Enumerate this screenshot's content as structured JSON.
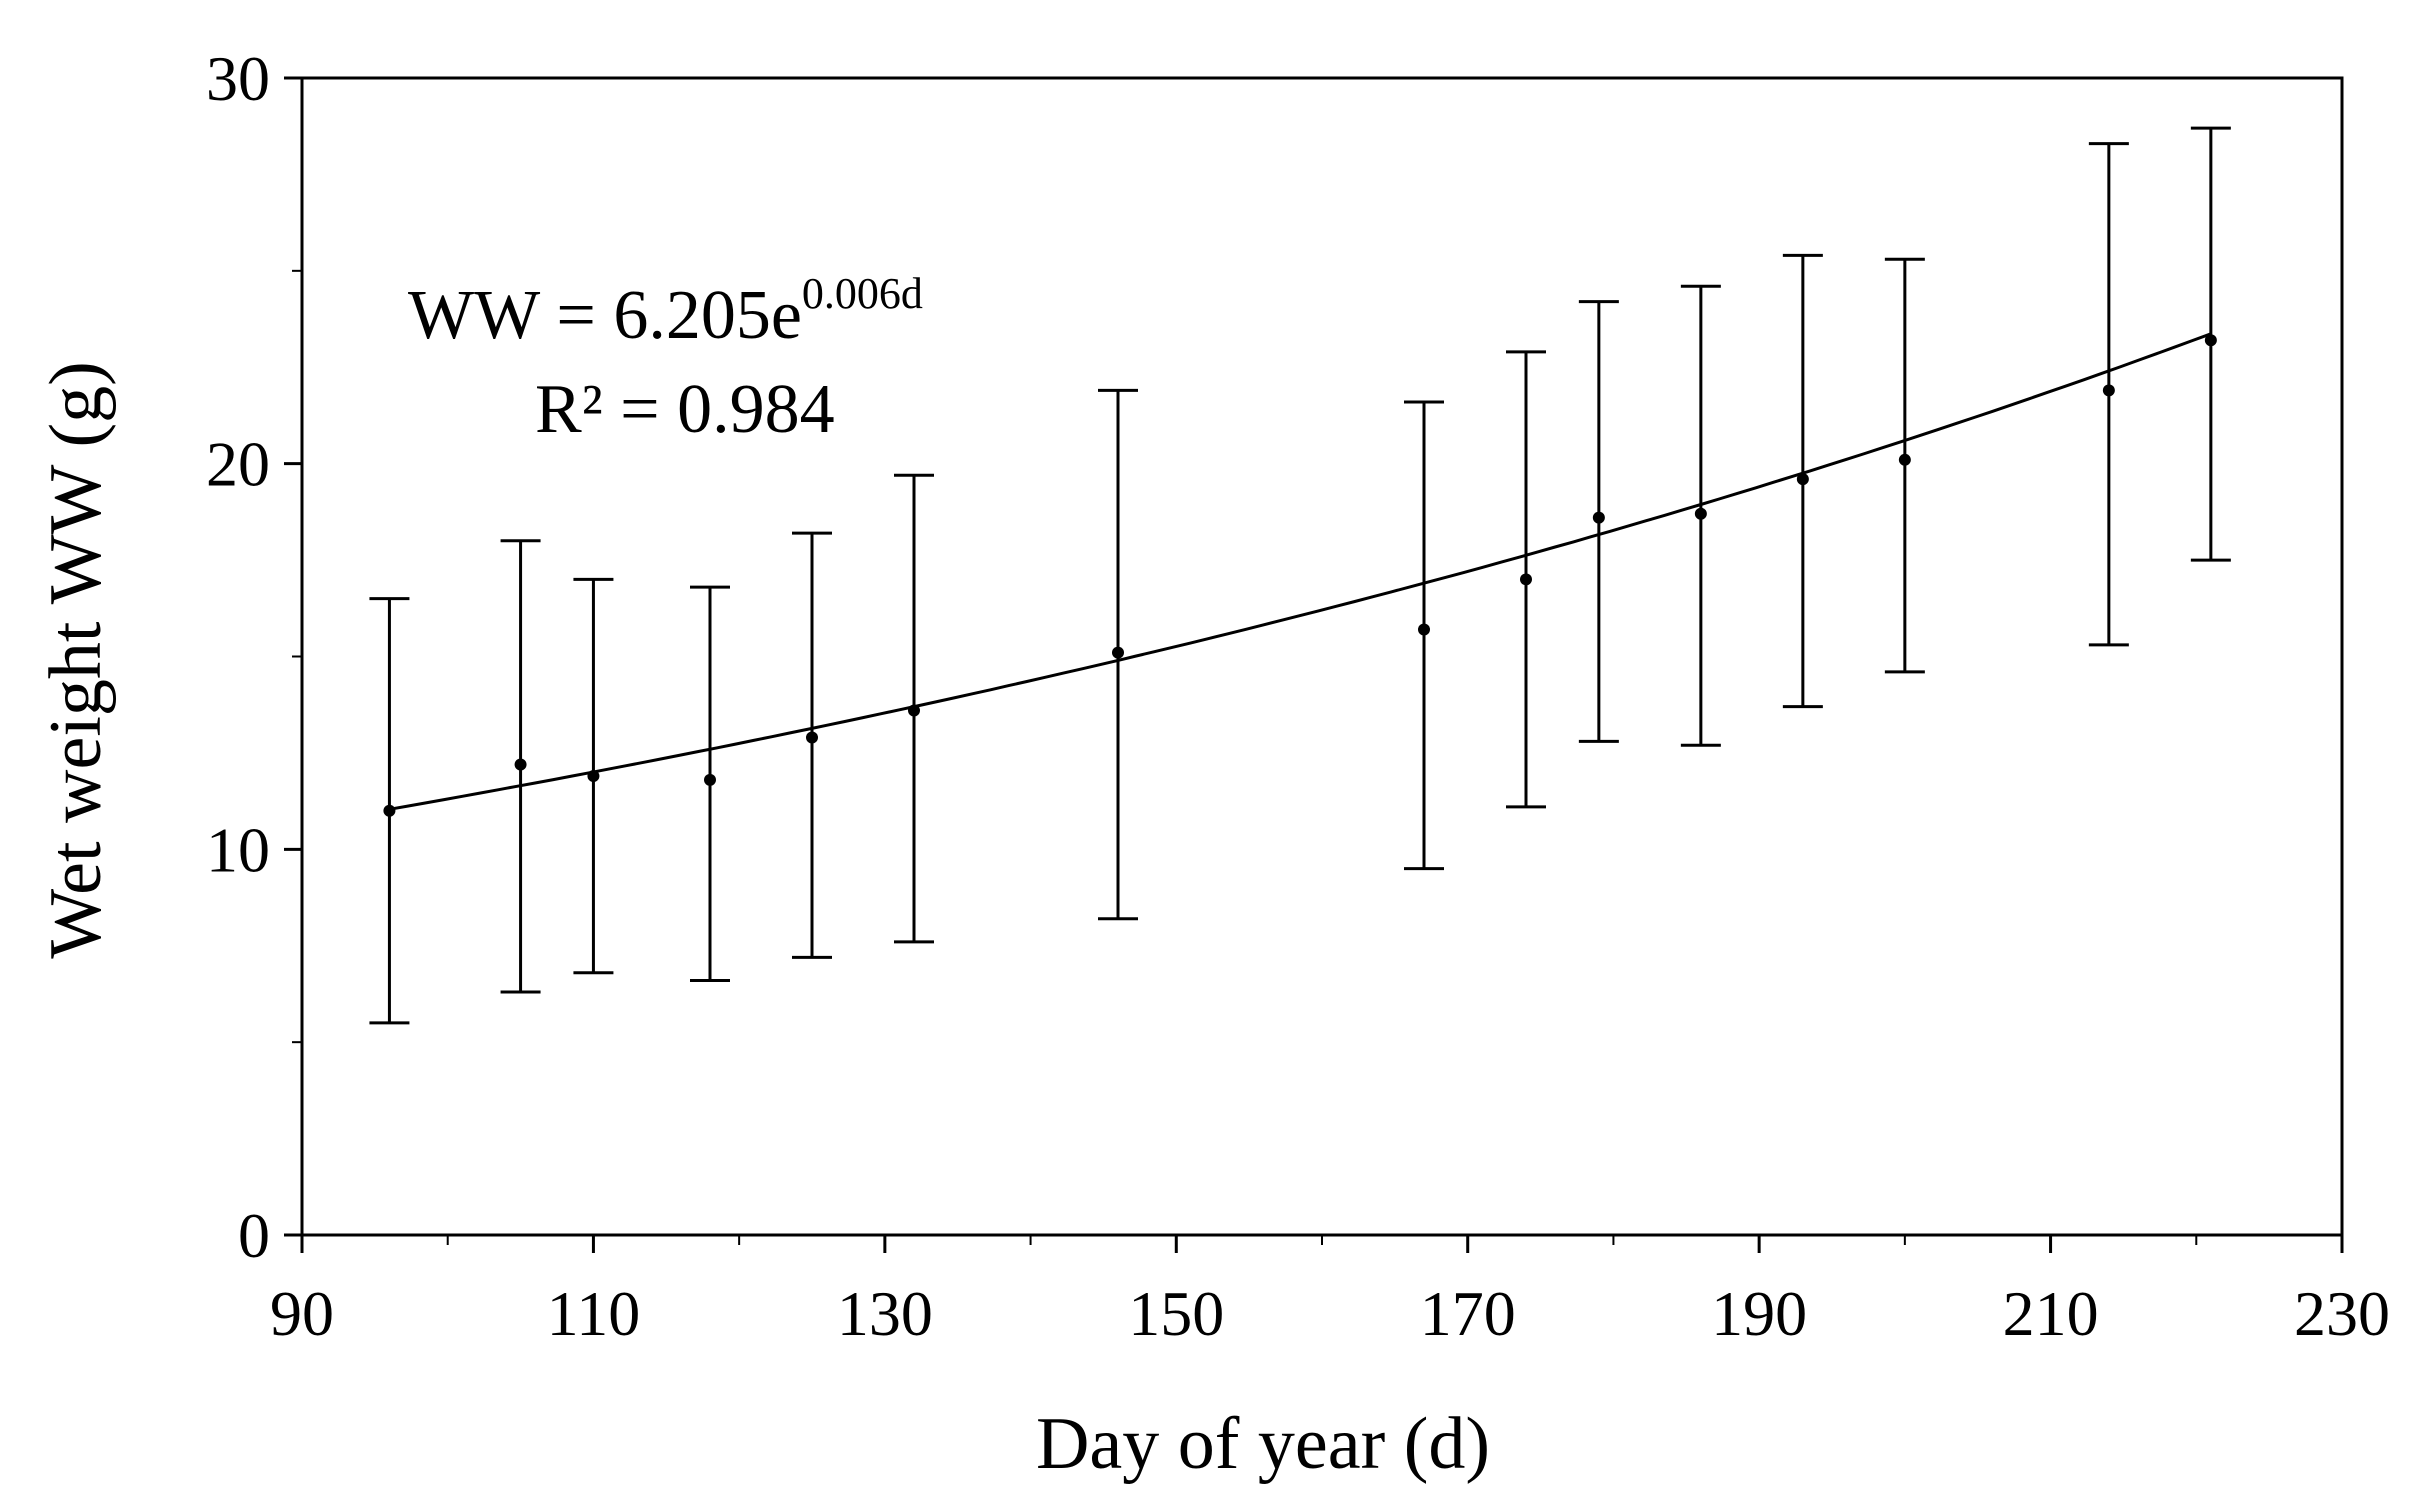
{
  "chart_data": {
    "type": "scatter",
    "title": "",
    "xlabel": "Day of year (d)",
    "ylabel": "Wet weight WW (g)",
    "xlim": [
      90,
      230
    ],
    "ylim": [
      0,
      30
    ],
    "x_ticks": [
      90,
      110,
      130,
      150,
      170,
      190,
      210,
      230
    ],
    "y_ticks": [
      0,
      10,
      20,
      30
    ],
    "grid": false,
    "legend": "none",
    "series": [
      {
        "name": "Wet weight",
        "x": [
          96,
          105,
          110,
          118,
          125,
          132,
          146,
          167,
          174,
          179,
          186,
          193,
          200,
          214,
          221
        ],
        "y": [
          11.0,
          12.2,
          11.9,
          11.8,
          12.9,
          13.6,
          15.1,
          15.7,
          17.0,
          18.6,
          18.7,
          19.6,
          20.1,
          21.9,
          23.2
        ],
        "err_low": [
          5.5,
          6.3,
          6.8,
          6.6,
          7.2,
          7.6,
          8.2,
          9.5,
          11.1,
          12.8,
          12.7,
          13.7,
          14.6,
          15.3,
          17.5
        ],
        "err_high": [
          16.5,
          18.0,
          17.0,
          16.8,
          18.2,
          19.7,
          21.9,
          21.6,
          22.9,
          24.2,
          24.6,
          25.4,
          25.3,
          28.3,
          28.7
        ]
      }
    ],
    "fit": {
      "type": "exponential",
      "a": 6.205,
      "b": 0.006,
      "x_range": [
        96,
        221
      ],
      "equation_main": "WW = 6.205e",
      "equation_exp": "0.006d",
      "r2_label": "R² = 0.984"
    }
  }
}
